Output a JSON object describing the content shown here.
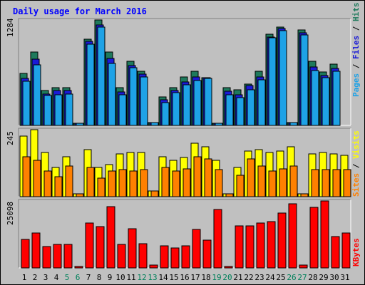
{
  "chart_data": [
    {
      "panel": "top",
      "type": "bar",
      "title": "Daily usage for March 2016",
      "ymax_label": "1284",
      "axis_label_parts": [
        "Pages",
        "Files",
        "Hits"
      ],
      "colors": {
        "hits": "#1e7a5c",
        "files": "#1a1ad8",
        "pages": "#1ea2e6"
      },
      "categories": [
        "1",
        "2",
        "3",
        "4",
        "5",
        "6",
        "7",
        "8",
        "9",
        "10",
        "11",
        "12",
        "13",
        "14",
        "15",
        "16",
        "17",
        "18",
        "19",
        "20",
        "21",
        "22",
        "23",
        "24",
        "25",
        "26",
        "27",
        "28",
        "29",
        "30",
        "31"
      ],
      "series": [
        {
          "name": "Hits",
          "key": "hits",
          "values": [
            655,
            920,
            435,
            470,
            470,
            30,
            1075,
            1320,
            915,
            470,
            805,
            675,
            35,
            355,
            470,
            605,
            680,
            600,
            30,
            470,
            450,
            520,
            675,
            1140,
            1230,
            40,
            1195,
            800,
            670,
            765,
            0
          ]
        },
        {
          "name": "Files",
          "key": "files",
          "values": [
            590,
            830,
            395,
            435,
            435,
            30,
            1055,
            1260,
            835,
            420,
            745,
            645,
            35,
            320,
            435,
            540,
            610,
            595,
            30,
            425,
            385,
            495,
            610,
            1110,
            1210,
            40,
            1160,
            730,
            625,
            710,
            0
          ]
        },
        {
          "name": "Pages",
          "key": "pages",
          "values": [
            555,
            755,
            375,
            380,
            390,
            30,
            1020,
            1230,
            775,
            385,
            720,
            610,
            35,
            285,
            410,
            505,
            565,
            590,
            30,
            385,
            345,
            450,
            575,
            1095,
            1185,
            40,
            1130,
            690,
            600,
            680,
            0
          ]
        }
      ]
    },
    {
      "panel": "middle",
      "type": "bar",
      "ymax_label": "245",
      "axis_label_parts": [
        "Sites",
        "Visits"
      ],
      "colors": {
        "visits": "#ffff00",
        "sites": "#ff8000"
      },
      "categories": [
        "1",
        "2",
        "3",
        "4",
        "5",
        "6",
        "7",
        "8",
        "9",
        "10",
        "11",
        "12",
        "13",
        "14",
        "15",
        "16",
        "17",
        "18",
        "19",
        "20",
        "21",
        "22",
        "23",
        "24",
        "25",
        "26",
        "27",
        "28",
        "29",
        "30",
        "31"
      ],
      "series": [
        {
          "name": "Visits",
          "key": "visits",
          "values": [
            225,
            250,
            165,
            110,
            150,
            10,
            175,
            110,
            120,
            160,
            165,
            165,
            20,
            150,
            135,
            145,
            200,
            185,
            135,
            10,
            110,
            170,
            175,
            165,
            170,
            185,
            10,
            160,
            165,
            160,
            155
          ]
        },
        {
          "name": "Sites",
          "key": "sites",
          "values": [
            150,
            135,
            95,
            75,
            115,
            10,
            110,
            70,
            95,
            100,
            95,
            100,
            20,
            110,
            95,
            105,
            150,
            140,
            100,
            10,
            80,
            140,
            115,
            95,
            105,
            115,
            10,
            100,
            100,
            100,
            100
          ]
        }
      ]
    },
    {
      "panel": "bottom",
      "type": "bar",
      "ymax_label": "25098",
      "axis_label_parts": [
        "KBytes"
      ],
      "colors": {
        "kbytes": "#ff0000"
      },
      "categories": [
        "1",
        "2",
        "3",
        "4",
        "5",
        "6",
        "7",
        "8",
        "9",
        "10",
        "11",
        "12",
        "13",
        "14",
        "15",
        "16",
        "17",
        "18",
        "19",
        "20",
        "21",
        "22",
        "23",
        "24",
        "25",
        "26",
        "27",
        "28",
        "29",
        "30",
        "31"
      ],
      "series": [
        {
          "name": "KBytes",
          "key": "kbytes",
          "values": [
            11200,
            13500,
            8400,
            9100,
            9200,
            500,
            17500,
            16000,
            23800,
            9200,
            15200,
            9500,
            1000,
            8600,
            7800,
            8600,
            15000,
            10900,
            22800,
            500,
            16400,
            16200,
            17300,
            18000,
            21400,
            25000,
            1200,
            23400,
            26000,
            12300,
            13500
          ]
        }
      ]
    }
  ],
  "x_label_colors": {
    "weekday": "#000000",
    "weekend": "#00805a",
    "weekend_days": [
      "5",
      "6",
      "12",
      "13",
      "19",
      "20",
      "26",
      "27"
    ]
  },
  "colors": {
    "background": "#c0c0c0",
    "title": "#0000ff",
    "border": "#000000"
  }
}
